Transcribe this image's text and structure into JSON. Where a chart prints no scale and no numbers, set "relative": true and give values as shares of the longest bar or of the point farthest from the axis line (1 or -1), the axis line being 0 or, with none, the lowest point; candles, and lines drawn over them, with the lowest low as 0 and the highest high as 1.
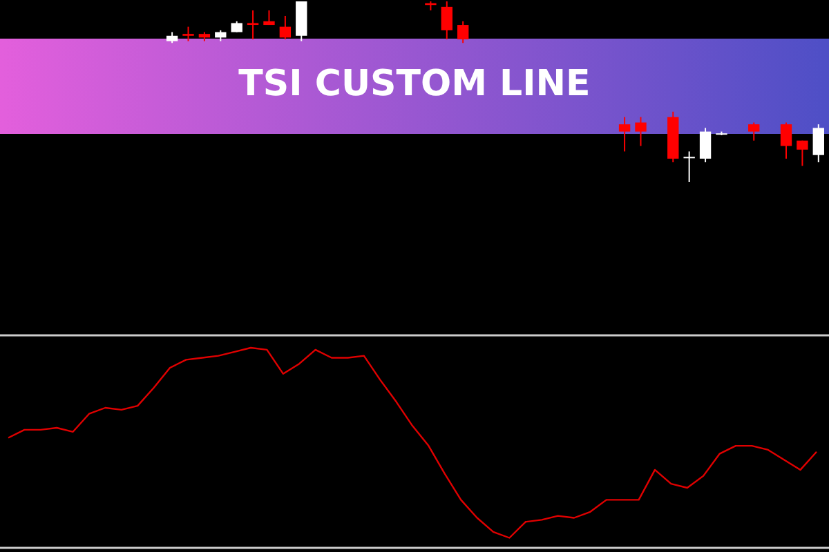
{
  "chart_data": [
    {
      "type": "candlestick",
      "title": "TSI CUSTOM LINE",
      "relative": true,
      "categories": [
        null,
        null,
        null,
        null,
        null,
        null,
        null,
        null,
        null,
        null,
        null,
        null,
        null,
        null,
        null,
        null,
        null,
        null,
        null,
        null,
        null,
        null,
        null,
        null,
        null,
        null,
        null,
        null,
        null,
        null,
        null,
        null,
        null,
        null,
        null,
        null,
        null,
        null,
        null,
        null,
        null,
        null,
        null,
        null,
        null,
        null,
        null,
        null,
        null,
        null,
        null
      ],
      "ohlc": [
        null,
        null,
        null,
        null,
        null,
        null,
        null,
        null,
        null,
        null,
        [
          0.78,
          0.83,
          0.77,
          0.81
        ],
        [
          0.82,
          0.86,
          0.78,
          0.81
        ],
        [
          0.82,
          0.83,
          0.78,
          0.8
        ],
        [
          0.8,
          0.84,
          0.78,
          0.83
        ],
        [
          0.83,
          0.89,
          0.83,
          0.88
        ],
        [
          0.88,
          0.95,
          0.79,
          0.87
        ],
        [
          0.89,
          0.95,
          0.87,
          0.87
        ],
        [
          0.86,
          0.92,
          0.79,
          0.8
        ],
        [
          0.81,
          1,
          0.78,
          1
        ],
        null,
        null,
        null,
        null,
        null,
        null,
        null,
        [
          0.99,
          1,
          0.95,
          0.98
        ],
        [
          0.97,
          1,
          0.79,
          0.84
        ],
        [
          0.87,
          0.89,
          0.77,
          0.79
        ],
        null,
        null,
        null,
        null,
        null,
        null,
        null,
        null,
        null,
        [
          0.32,
          0.36,
          0.17,
          0.28
        ],
        [
          0.33,
          0.36,
          0.2,
          0.28
        ],
        null,
        [
          0.36,
          0.39,
          0.11,
          0.13
        ],
        [
          0.14,
          0.17,
          0,
          0.14
        ],
        [
          0.13,
          0.3,
          0.11,
          0.28
        ],
        [
          0.27,
          0.28,
          0.26,
          0.27
        ],
        null,
        [
          0.32,
          0.33,
          0.23,
          0.28
        ],
        null,
        [
          0.32,
          0.33,
          0.13,
          0.2
        ],
        [
          0.23,
          0.23,
          0.09,
          0.18
        ],
        [
          0.15,
          0.32,
          0.11,
          0.3
        ]
      ]
    },
    {
      "type": "line",
      "relative": true,
      "categories": [
        null,
        null,
        null,
        null,
        null,
        null,
        null,
        null,
        null,
        null,
        null,
        null,
        null,
        null,
        null,
        null,
        null,
        null,
        null,
        null,
        null,
        null,
        null,
        null,
        null,
        null,
        null,
        null,
        null,
        null,
        null,
        null,
        null,
        null,
        null,
        null,
        null,
        null,
        null,
        null,
        null,
        null,
        null,
        null,
        null,
        null,
        null,
        null,
        null,
        null,
        null
      ],
      "series": [
        {
          "color": "#e00000",
          "values": [
            0.55,
            0.59,
            0.59,
            0.6,
            0.58,
            0.67,
            0.7,
            0.69,
            0.71,
            0.8,
            0.9,
            0.94,
            0.95,
            0.96,
            0.98,
            1,
            0.99,
            0.87,
            0.92,
            0.99,
            0.95,
            0.95,
            0.96,
            0.84,
            0.73,
            0.61,
            0.51,
            0.37,
            0.24,
            0.15,
            0.08,
            0.05,
            0.13,
            0.14,
            0.16,
            0.15,
            0.18,
            0.24,
            0.24,
            0.24,
            0.39,
            0.32,
            0.3,
            0.36,
            0.47,
            0.51,
            0.51,
            0.49,
            0.44,
            0.39,
            0.48
          ]
        }
      ]
    }
  ]
}
